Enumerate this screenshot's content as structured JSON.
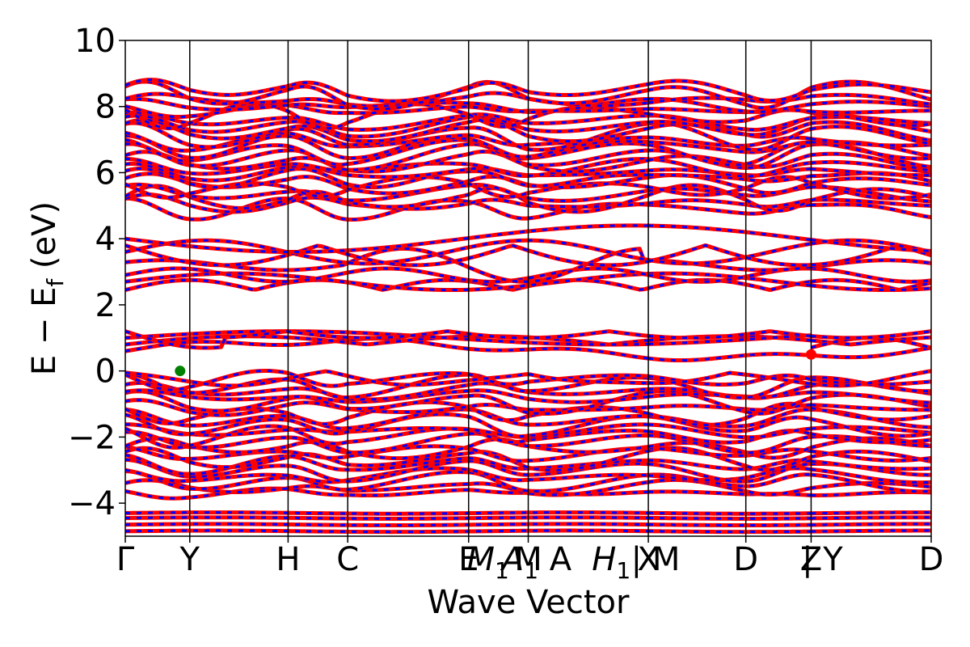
{
  "chart_data": {
    "type": "line",
    "title": "",
    "xlabel": "Wave Vector",
    "ylabel": "E − E",
    "ylabel_subscript": "f",
    "ylabel_unit": " (eV)",
    "ylim": [
      -5,
      10
    ],
    "y_ticks": [
      -4,
      -2,
      0,
      2,
      4,
      6,
      8,
      10
    ],
    "y_tick_labels": [
      "−4",
      "−2",
      "0",
      "2",
      "4",
      "6",
      "8",
      "10"
    ],
    "x_range": [
      0,
      100
    ],
    "kpoints": [
      {
        "pos": 0.0,
        "label": "Γ"
      },
      {
        "pos": 8.0,
        "label": "Y"
      },
      {
        "pos": 20.2,
        "label": "H"
      },
      {
        "pos": 27.6,
        "label": "C"
      },
      {
        "pos": 42.6,
        "label": "E"
      },
      {
        "pos": 50.0,
        "label": "M"
      },
      {
        "pos": 64.9,
        "label": "X"
      },
      {
        "pos": 77.0,
        "label": "D"
      },
      {
        "pos": 85.1,
        "label": "Z"
      },
      {
        "pos": 100.0,
        "label": "D"
      }
    ],
    "extra_tick_labels": [
      {
        "pos": 45.0,
        "label": "M",
        "subscript": "1"
      },
      {
        "pos": 49.0,
        "label": "A",
        "subscript": "1"
      },
      {
        "pos": 54.0,
        "label": "A"
      },
      {
        "pos": 60.3,
        "label": "H",
        "subscript": "1"
      },
      {
        "pos": 65.8,
        "label": "| M"
      },
      {
        "pos": 86.5,
        "label": "| Y"
      }
    ],
    "segment_breaks": [
      64.9,
      85.1
    ],
    "series": [
      {
        "color": "#ff0000",
        "style": "solid"
      },
      {
        "color": "#0000ff",
        "style": "dashed"
      }
    ],
    "band_edges": [
      {
        "marker": "vbm",
        "x": 6.8,
        "y": 0.0,
        "color": "#008000"
      },
      {
        "marker": "cbm",
        "x": 85.1,
        "y": 0.5,
        "color": "#ff0000"
      }
    ],
    "band_groups": {
      "deep_flat": [
        -4.85,
        -4.65,
        -4.45,
        -4.3
      ],
      "valence_count": 22,
      "valence_range": [
        -3.7,
        -0.1
      ],
      "conduction_low": [
        0.55,
        0.75,
        1.0,
        1.2
      ],
      "conduction_mid": [
        2.45,
        2.7,
        2.9,
        3.2,
        3.6,
        3.8,
        4.0
      ],
      "conduction_high_count": 24,
      "conduction_high_range": [
        4.9,
        8.5
      ]
    }
  }
}
